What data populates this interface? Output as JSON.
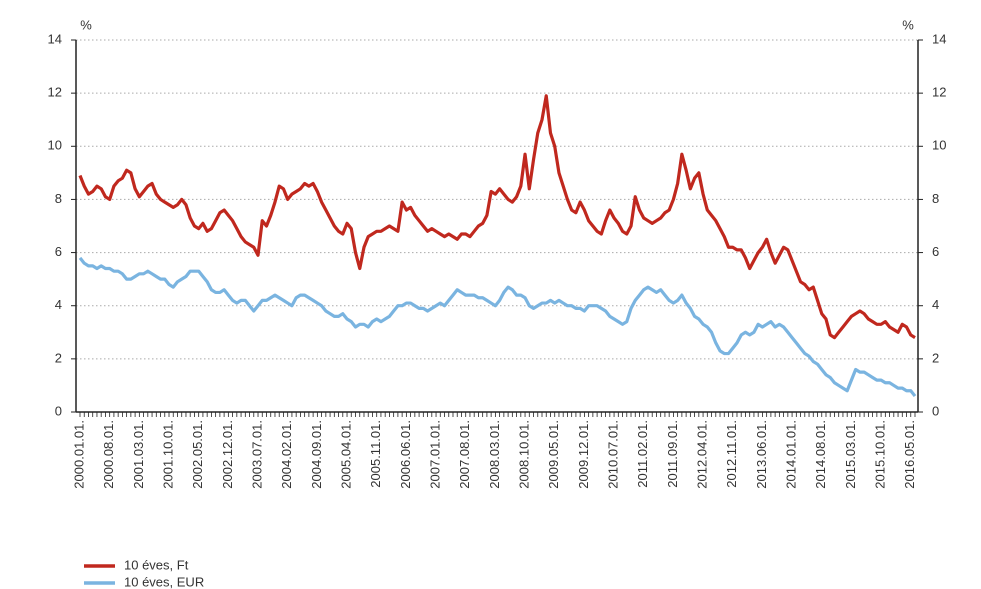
{
  "chart_data": {
    "type": "line",
    "ylabel": "%",
    "y2label": "%",
    "categories": [
      "2000.01.01.",
      null,
      null,
      null,
      null,
      null,
      null,
      "2000.08.01.",
      null,
      null,
      null,
      null,
      null,
      null,
      "2001.03.01.",
      null,
      null,
      null,
      null,
      null,
      null,
      "2001.10.01.",
      null,
      null,
      null,
      null,
      null,
      null,
      "2002.05.01.",
      null,
      null,
      null,
      null,
      null,
      null,
      "2002.12.01.",
      null,
      null,
      null,
      null,
      null,
      null,
      "2003.07.01.",
      null,
      null,
      null,
      null,
      null,
      null,
      "2004.02.01.",
      null,
      null,
      null,
      null,
      null,
      null,
      "2004.09.01.",
      null,
      null,
      null,
      null,
      null,
      null,
      "2005.04.01.",
      null,
      null,
      null,
      null,
      null,
      null,
      "2005.11.01.",
      null,
      null,
      null,
      null,
      null,
      null,
      "2006.06.01.",
      null,
      null,
      null,
      null,
      null,
      null,
      "2007.01.01.",
      null,
      null,
      null,
      null,
      null,
      null,
      "2007.08.01.",
      null,
      null,
      null,
      null,
      null,
      null,
      "2008.03.01.",
      null,
      null,
      null,
      null,
      null,
      null,
      "2008.10.01.",
      null,
      null,
      null,
      null,
      null,
      null,
      "2009.05.01.",
      null,
      null,
      null,
      null,
      null,
      null,
      "2009.12.01.",
      null,
      null,
      null,
      null,
      null,
      null,
      "2010.07.01.",
      null,
      null,
      null,
      null,
      null,
      null,
      "2011.02.01.",
      null,
      null,
      null,
      null,
      null,
      null,
      "2011.09.01.",
      null,
      null,
      null,
      null,
      null,
      null,
      "2012.04.01.",
      null,
      null,
      null,
      null,
      null,
      null,
      "2012.11.01.",
      null,
      null,
      null,
      null,
      null,
      null,
      "2013.06.01.",
      null,
      null,
      null,
      null,
      null,
      null,
      "2014.01.01.",
      null,
      null,
      null,
      null,
      null,
      null,
      "2014.08.01.",
      null,
      null,
      null,
      null,
      null,
      null,
      "2015.03.01.",
      null,
      null,
      null,
      null,
      null,
      null,
      "2015.10.01.",
      null,
      null,
      null,
      null,
      null,
      null,
      "2016.05.01.",
      null
    ],
    "series": [
      {
        "name": "10 éves, Ft",
        "color": "#c0281e",
        "values": [
          8.9,
          8.5,
          8.2,
          8.3,
          8.5,
          8.4,
          8.1,
          8.0,
          8.5,
          8.7,
          8.8,
          9.1,
          9.0,
          8.4,
          8.1,
          8.3,
          8.5,
          8.6,
          8.2,
          8.0,
          7.9,
          7.8,
          7.7,
          7.8,
          8.0,
          7.8,
          7.3,
          7.0,
          6.9,
          7.1,
          6.8,
          6.9,
          7.2,
          7.5,
          7.6,
          7.4,
          7.2,
          6.9,
          6.6,
          6.4,
          6.3,
          6.2,
          5.9,
          7.2,
          7.0,
          7.4,
          7.9,
          8.5,
          8.4,
          8.0,
          8.2,
          8.3,
          8.4,
          8.6,
          8.5,
          8.6,
          8.3,
          7.9,
          7.6,
          7.3,
          7.0,
          6.8,
          6.7,
          7.1,
          6.9,
          6.0,
          5.4,
          6.2,
          6.6,
          6.7,
          6.8,
          6.8,
          6.9,
          7.0,
          6.9,
          6.8,
          7.9,
          7.6,
          7.7,
          7.4,
          7.2,
          7.0,
          6.8,
          6.9,
          6.8,
          6.7,
          6.6,
          6.7,
          6.6,
          6.5,
          6.7,
          6.7,
          6.6,
          6.8,
          7.0,
          7.1,
          7.4,
          8.3,
          8.2,
          8.4,
          8.2,
          8.0,
          7.9,
          8.1,
          8.5,
          9.7,
          8.4,
          9.5,
          10.5,
          11.0,
          11.9,
          10.5,
          10.0,
          9.0,
          8.5,
          8.0,
          7.6,
          7.5,
          7.9,
          7.6,
          7.2,
          7.0,
          6.8,
          6.7,
          7.2,
          7.6,
          7.3,
          7.1,
          6.8,
          6.7,
          7.0,
          8.1,
          7.6,
          7.3,
          7.2,
          7.1,
          7.2,
          7.3,
          7.5,
          7.6,
          8.0,
          8.6,
          9.7,
          9.1,
          8.4,
          8.8,
          9.0,
          8.2,
          7.6,
          7.4,
          7.2,
          6.9,
          6.6,
          6.2,
          6.2,
          6.1,
          6.1,
          5.8,
          5.4,
          5.7,
          6.0,
          6.2,
          6.5,
          6.0,
          5.6,
          5.9,
          6.2,
          6.1,
          5.7,
          5.3,
          4.9,
          4.8,
          4.6,
          4.7,
          4.2,
          3.7,
          3.5,
          2.9,
          2.8,
          3.0,
          3.2,
          3.4,
          3.6,
          3.7,
          3.8,
          3.7,
          3.5,
          3.4,
          3.3,
          3.3,
          3.4,
          3.2,
          3.1,
          3.0,
          3.3,
          3.2,
          2.9,
          2.8
        ]
      },
      {
        "name": "10 éves, EUR",
        "color": "#7ab4e0",
        "values": [
          5.8,
          5.6,
          5.5,
          5.5,
          5.4,
          5.5,
          5.4,
          5.4,
          5.3,
          5.3,
          5.2,
          5.0,
          5.0,
          5.1,
          5.2,
          5.2,
          5.3,
          5.2,
          5.1,
          5.0,
          5.0,
          4.8,
          4.7,
          4.9,
          5.0,
          5.1,
          5.3,
          5.3,
          5.3,
          5.1,
          4.9,
          4.6,
          4.5,
          4.5,
          4.6,
          4.4,
          4.2,
          4.1,
          4.2,
          4.2,
          4.0,
          3.8,
          4.0,
          4.2,
          4.2,
          4.3,
          4.4,
          4.3,
          4.2,
          4.1,
          4.0,
          4.3,
          4.4,
          4.4,
          4.3,
          4.2,
          4.1,
          4.0,
          3.8,
          3.7,
          3.6,
          3.6,
          3.7,
          3.5,
          3.4,
          3.2,
          3.3,
          3.3,
          3.2,
          3.4,
          3.5,
          3.4,
          3.5,
          3.6,
          3.8,
          4.0,
          4.0,
          4.1,
          4.1,
          4.0,
          3.9,
          3.9,
          3.8,
          3.9,
          4.0,
          4.1,
          4.0,
          4.2,
          4.4,
          4.6,
          4.5,
          4.4,
          4.4,
          4.4,
          4.3,
          4.3,
          4.2,
          4.1,
          4.0,
          4.2,
          4.5,
          4.7,
          4.6,
          4.4,
          4.4,
          4.3,
          4.0,
          3.9,
          4.0,
          4.1,
          4.1,
          4.2,
          4.1,
          4.2,
          4.1,
          4.0,
          4.0,
          3.9,
          3.9,
          3.8,
          4.0,
          4.0,
          4.0,
          3.9,
          3.8,
          3.6,
          3.5,
          3.4,
          3.3,
          3.4,
          3.9,
          4.2,
          4.4,
          4.6,
          4.7,
          4.6,
          4.5,
          4.6,
          4.4,
          4.2,
          4.1,
          4.2,
          4.4,
          4.1,
          3.9,
          3.6,
          3.5,
          3.3,
          3.2,
          3.0,
          2.6,
          2.3,
          2.2,
          2.2,
          2.4,
          2.6,
          2.9,
          3.0,
          2.9,
          3.0,
          3.3,
          3.2,
          3.3,
          3.4,
          3.2,
          3.3,
          3.2,
          3.0,
          2.8,
          2.6,
          2.4,
          2.2,
          2.1,
          1.9,
          1.8,
          1.6,
          1.4,
          1.3,
          1.1,
          1.0,
          0.9,
          0.8,
          1.2,
          1.6,
          1.5,
          1.5,
          1.4,
          1.3,
          1.2,
          1.2,
          1.1,
          1.1,
          1.0,
          0.9,
          0.9,
          0.8,
          0.8,
          0.6
        ]
      }
    ],
    "ylim": [
      0,
      14
    ],
    "yticks": [
      0,
      2,
      4,
      6,
      8,
      10,
      12,
      14
    ],
    "y2lim": [
      0,
      14
    ],
    "y2ticks": [
      0,
      2,
      4,
      6,
      8,
      10,
      12,
      14
    ],
    "grid": true,
    "legend": "bottom-left"
  }
}
